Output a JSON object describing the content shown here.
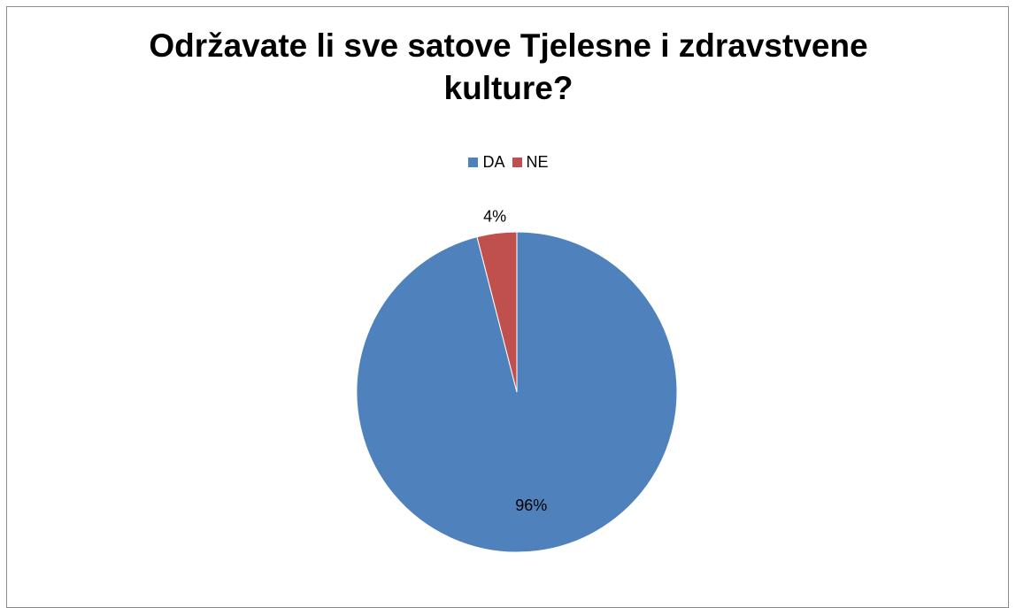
{
  "chart_data": {
    "type": "pie",
    "title_lines": [
      "Održavate li sve satove Tjelesne i zdravstvene",
      "kulture?"
    ],
    "categories": [
      "DA",
      "NE"
    ],
    "values": [
      96,
      4
    ],
    "data_labels": [
      "96%",
      "4%"
    ],
    "colors": [
      "#4f81bd",
      "#c0504d"
    ],
    "legend_position": "top",
    "start_angle_deg": 0,
    "direction": "clockwise"
  }
}
